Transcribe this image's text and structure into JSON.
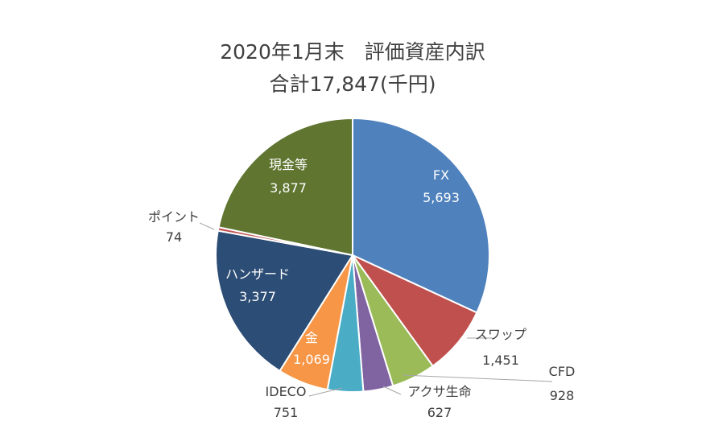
{
  "chart_data": {
    "type": "pie",
    "title": "2020年1月末　評価資産内訳",
    "subtitle": "合計17,847(千円)",
    "slices": [
      {
        "label": "FX",
        "value": 5693,
        "display": "5,693",
        "color": "#4F81BD",
        "label_position": "inside"
      },
      {
        "label": "スワップ",
        "value": 1451,
        "display": "1,451",
        "color": "#C0504D",
        "label_position": "outside"
      },
      {
        "label": "CFD",
        "value": 928,
        "display": "928",
        "color": "#9BBB59",
        "label_position": "outside"
      },
      {
        "label": "アクサ生命",
        "value": 627,
        "display": "627",
        "color": "#8064A2",
        "label_position": "outside"
      },
      {
        "label": "IDECO",
        "value": 751,
        "display": "751",
        "color": "#4BACC6",
        "label_position": "outside"
      },
      {
        "label": "金",
        "value": 1069,
        "display": "1,069",
        "color": "#F79646",
        "label_position": "inside"
      },
      {
        "label": "ハンザード",
        "value": 3377,
        "display": "3,377",
        "color": "#2C4D75",
        "label_position": "inside"
      },
      {
        "label": "ポイント",
        "value": 74,
        "display": "74",
        "color": "#C0504D",
        "label_position": "outside"
      },
      {
        "label": "現金等",
        "value": 3877,
        "display": "3,877",
        "color": "#5F7530",
        "label_position": "inside"
      }
    ]
  }
}
